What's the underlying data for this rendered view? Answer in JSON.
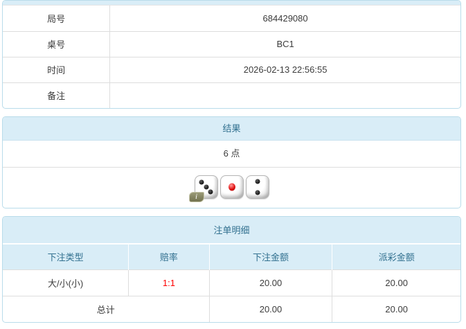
{
  "colors": {
    "panel_bg": "#d9edf7",
    "panel_border": "#b9dcea",
    "header_text": "#31708f",
    "row_border": "#dddddd",
    "body_text": "#3c3c3c",
    "odds_red": "#ff0000",
    "badge_bg": "#80805c"
  },
  "info_table": {
    "rows": [
      {
        "label": "局号",
        "value": "684429080"
      },
      {
        "label": "桌号",
        "value": "BC1"
      },
      {
        "label": "时间",
        "value": "2026-02-13 22:56:55"
      },
      {
        "label": "备注",
        "value": ""
      }
    ]
  },
  "result_panel": {
    "title": "结果",
    "points": "6 点",
    "dice": [
      3,
      1,
      2
    ],
    "info_icon": "i"
  },
  "bets_panel": {
    "title": "注单明细",
    "columns": [
      "下注类型",
      "赔率",
      "下注金额",
      "派彩金额"
    ],
    "rows": [
      {
        "bet_type": "大/小(小)",
        "odds": "1:1",
        "bet_amount": "20.00",
        "payout": "20.00"
      }
    ],
    "total": {
      "label": "总计",
      "bet_amount": "20.00",
      "payout": "20.00"
    }
  }
}
